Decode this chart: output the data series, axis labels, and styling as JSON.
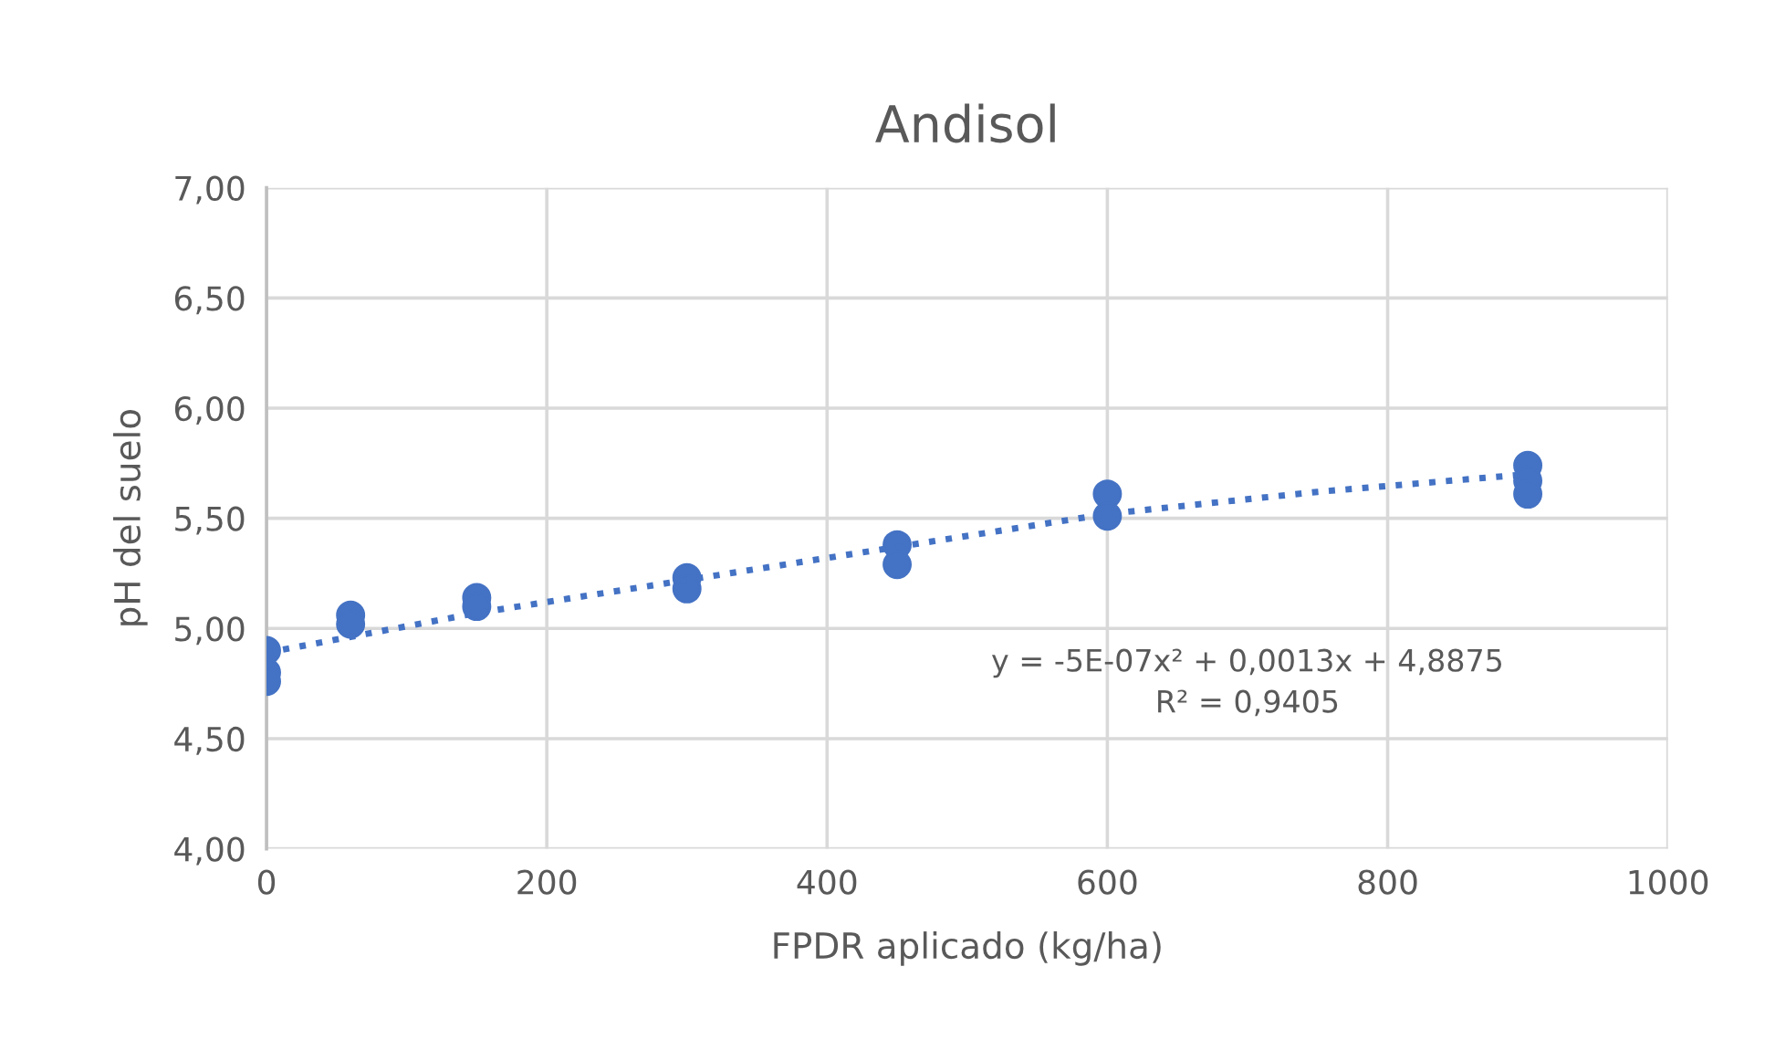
{
  "chart_data": {
    "type": "scatter",
    "title": "Andisol",
    "xlabel": "FPDR aplicado (kg/ha)",
    "ylabel": "pH del suelo",
    "series": [
      {
        "color": "#4472c4",
        "marker": "circle",
        "x": [
          0,
          0,
          0,
          60,
          60,
          150,
          150,
          300,
          300,
          450,
          450,
          600,
          600,
          900,
          900,
          900
        ],
        "values": [
          4.9,
          4.8,
          4.76,
          5.06,
          5.02,
          5.14,
          5.1,
          5.23,
          5.18,
          5.38,
          5.29,
          5.61,
          5.51,
          5.74,
          5.67,
          5.61
        ]
      },
      {
        "type": "line",
        "color": "#4472c4",
        "line_style": "dotted",
        "marker": "none",
        "x": [
          0,
          150,
          300,
          450,
          600,
          750,
          900
        ],
        "values": [
          4.89,
          5.07,
          5.22,
          5.37,
          5.52,
          5.62,
          5.7
        ]
      }
    ],
    "annotations": [
      "y = -5E-07x² + 0,0013x + 4,8875\nR² = 0,9405"
    ],
    "xlim": [
      0,
      1000
    ],
    "xticks": [
      0,
      200,
      400,
      600,
      800,
      1000
    ],
    "ylim": [
      4.0,
      7.0
    ],
    "yticks": [
      {
        "value": 4.0,
        "label": "4,00"
      },
      {
        "value": 4.5,
        "label": "4,50"
      },
      {
        "value": 5.0,
        "label": "5,00"
      },
      {
        "value": 5.5,
        "label": "5,50"
      },
      {
        "value": 6.0,
        "label": "6,00"
      },
      {
        "value": 6.5,
        "label": "6,50"
      },
      {
        "value": 7.0,
        "label": "7,00"
      }
    ],
    "grid": true,
    "legend": false
  }
}
